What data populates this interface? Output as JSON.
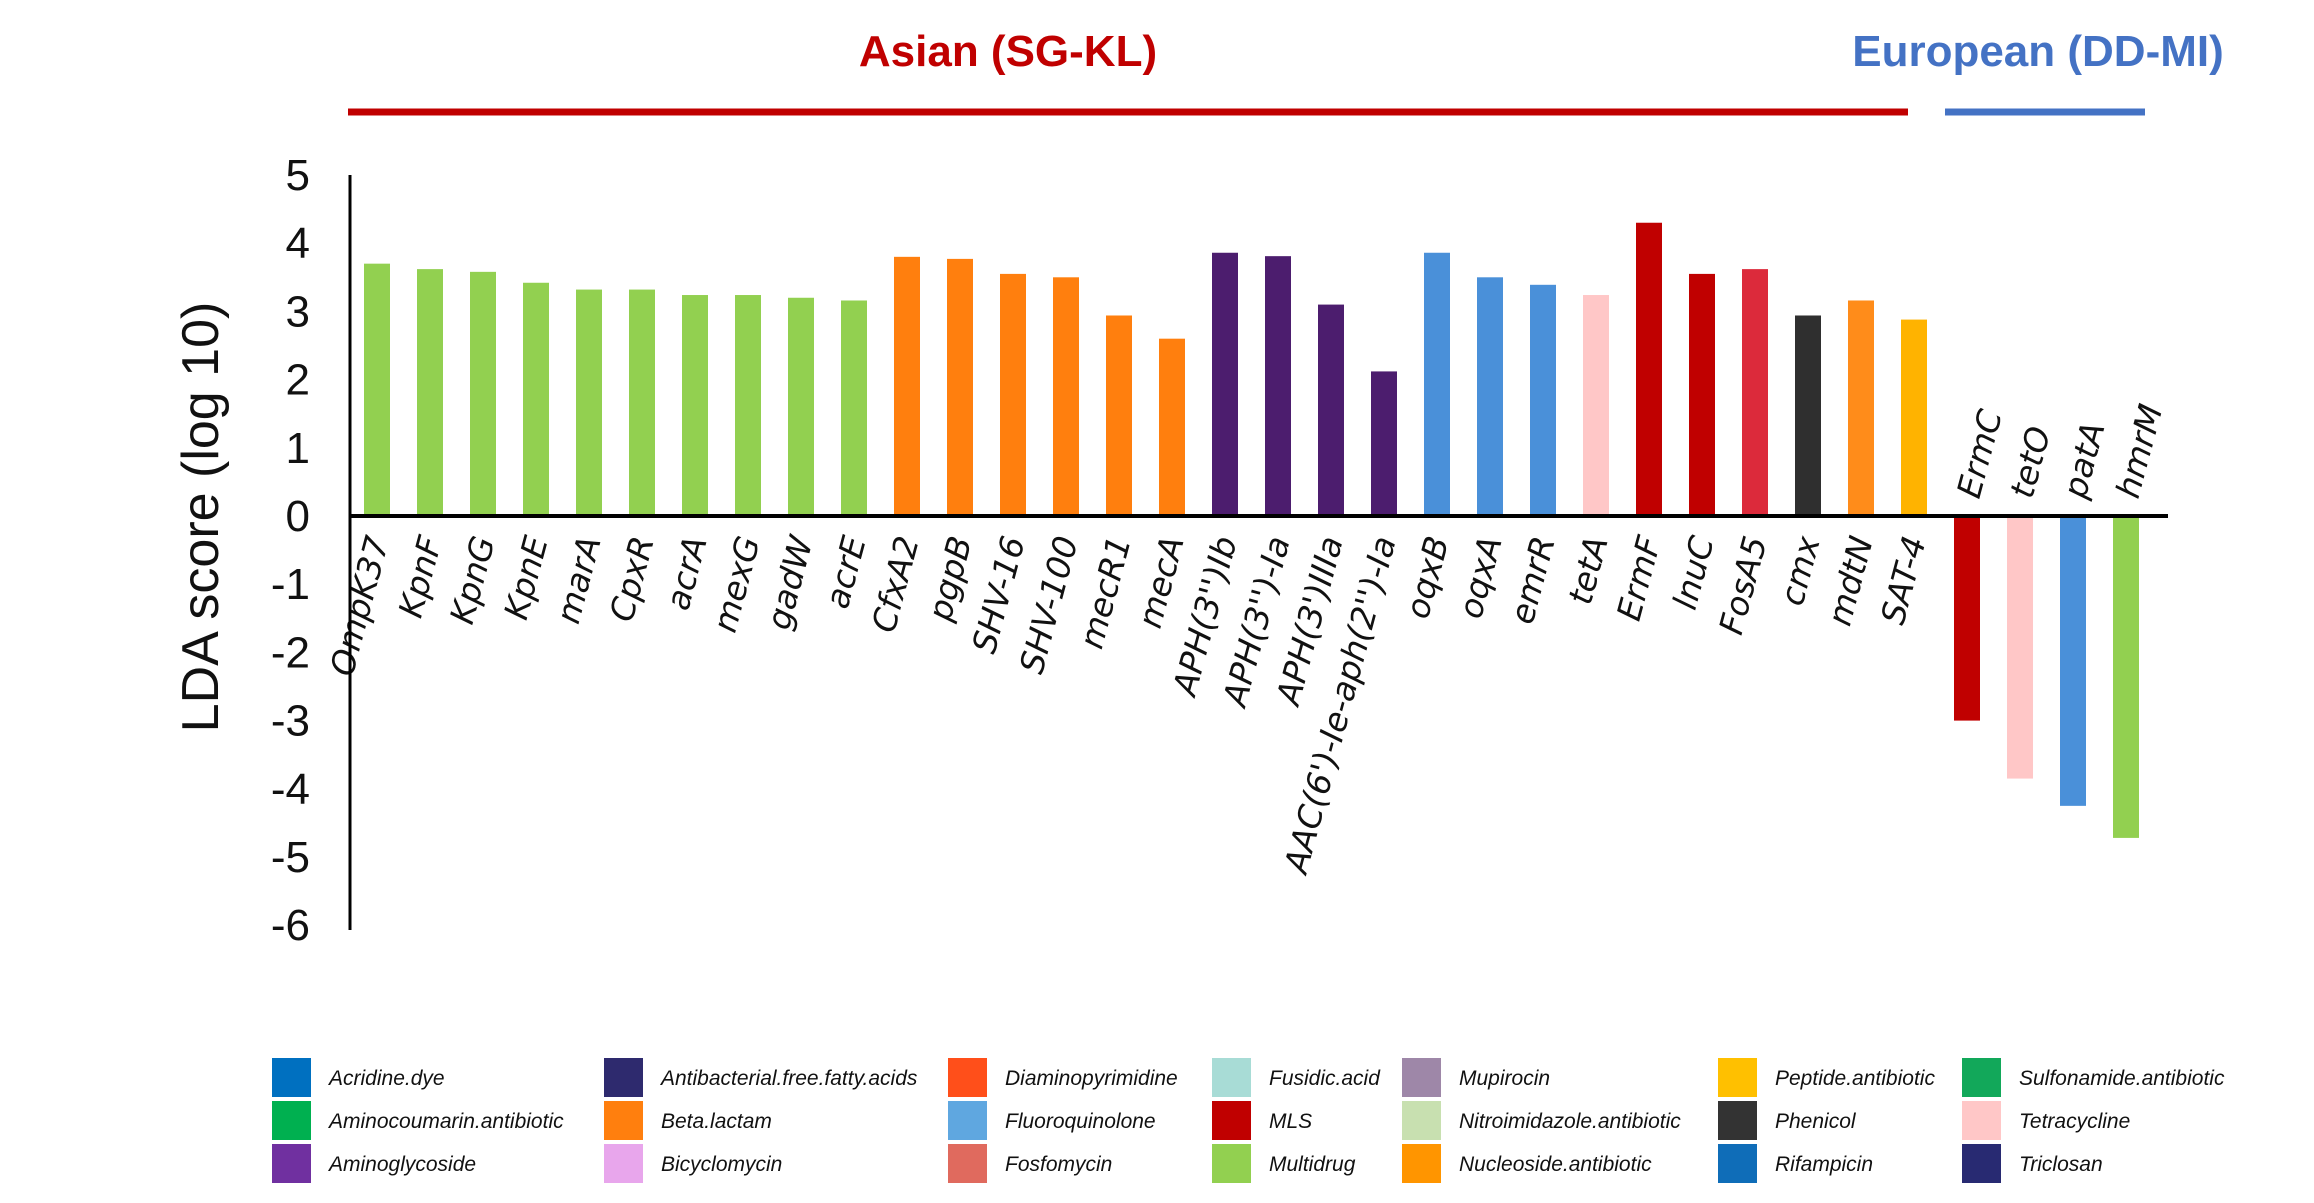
{
  "chart_data": {
    "type": "bar",
    "ylabel": "LDA score (log 10)",
    "ylim": [
      -6,
      5
    ],
    "yticks": [
      "5",
      "4",
      "3",
      "2",
      "1",
      "0",
      "-1",
      "-2",
      "-3",
      "-4",
      "-5",
      "-6"
    ],
    "groups": [
      {
        "label": "Asian (SG-KL)",
        "color": "#c00000"
      },
      {
        "label": "European (DD-MI)",
        "color": "#4472c4"
      }
    ],
    "categories": [
      "OmpK37",
      "KpnF",
      "KpnG",
      "KpnE",
      "marA",
      "CpxR",
      "acrA",
      "mexG",
      "gadW",
      "acrE",
      "CfxA2",
      "pgpB",
      "SHV-16",
      "SHV-100",
      "mecR1",
      "mecA",
      "APH(3'')Ib",
      "APH(3'')-Ia",
      "APH(3')IIIa",
      "AAC(6')-Ie-aph(2'')-Ia",
      "oqxB",
      "oqxA",
      "emrR",
      "tetA",
      "ErmF",
      "lnuC",
      "FosA5",
      "cmx",
      "mdtN",
      "SAT-4",
      "ErmC",
      "tetO",
      "patA",
      "hmrM"
    ],
    "values": [
      3.7,
      3.62,
      3.58,
      3.42,
      3.32,
      3.32,
      3.24,
      3.24,
      3.2,
      3.16,
      3.8,
      3.77,
      3.55,
      3.5,
      2.94,
      2.6,
      3.86,
      3.81,
      3.1,
      2.12,
      3.86,
      3.5,
      3.39,
      3.24,
      4.3,
      3.55,
      3.62,
      2.94,
      3.16,
      2.88,
      -3.0,
      -3.85,
      -4.25,
      -4.72
    ],
    "colors": [
      "#92d050",
      "#92d050",
      "#92d050",
      "#92d050",
      "#92d050",
      "#92d050",
      "#92d050",
      "#92d050",
      "#92d050",
      "#92d050",
      "#ff7f0e",
      "#ff7f0e",
      "#ff7f0e",
      "#ff7f0e",
      "#ff7f0e",
      "#ff7f0e",
      "#4c1d6e",
      "#4c1d6e",
      "#4c1d6e",
      "#4c1d6e",
      "#4a90d9",
      "#4a90d9",
      "#4a90d9",
      "#ffc7c7",
      "#c00000",
      "#c00000",
      "#dc2a3b",
      "#2f2f2f",
      "#ff8c1a",
      "#ffb300",
      "#c00000",
      "#ffc7c7",
      "#4a90d9",
      "#92d050"
    ],
    "legend": [
      {
        "label": "Acridine.dye",
        "color": "#0070c0"
      },
      {
        "label": "Aminocoumarin.antibiotic",
        "color": "#00b050"
      },
      {
        "label": "Aminoglycoside",
        "color": "#7030a0"
      },
      {
        "label": "Antibacterial.free.fatty.acids",
        "color": "#2e2a6e"
      },
      {
        "label": "Beta.lactam",
        "color": "#ff7f0e"
      },
      {
        "label": "Bicyclomycin",
        "color": "#e8a6ec"
      },
      {
        "label": "Diaminopyrimidine",
        "color": "#ff4f1a"
      },
      {
        "label": "Fluoroquinolone",
        "color": "#5fa7e0"
      },
      {
        "label": "Fosfomycin",
        "color": "#e06a5e"
      },
      {
        "label": "Fusidic.acid",
        "color": "#a8dcd6"
      },
      {
        "label": "MLS",
        "color": "#c00000"
      },
      {
        "label": "Multidrug",
        "color": "#92d050"
      },
      {
        "label": "Mupirocin",
        "color": "#9e87a8"
      },
      {
        "label": "Nitroimidazole.antibiotic",
        "color": "#c8e0b0"
      },
      {
        "label": "Nucleoside.antibiotic",
        "color": "#ff9500"
      },
      {
        "label": "Peptide.antibiotic",
        "color": "#ffc000"
      },
      {
        "label": "Phenicol",
        "color": "#333333"
      },
      {
        "label": "Rifampicin",
        "color": "#0f6db8"
      },
      {
        "label": "Sulfonamide.antibiotic",
        "color": "#12a85a"
      },
      {
        "label": "Tetracycline",
        "color": "#ffc7c7"
      },
      {
        "label": "Triclosan",
        "color": "#282a72"
      }
    ]
  }
}
